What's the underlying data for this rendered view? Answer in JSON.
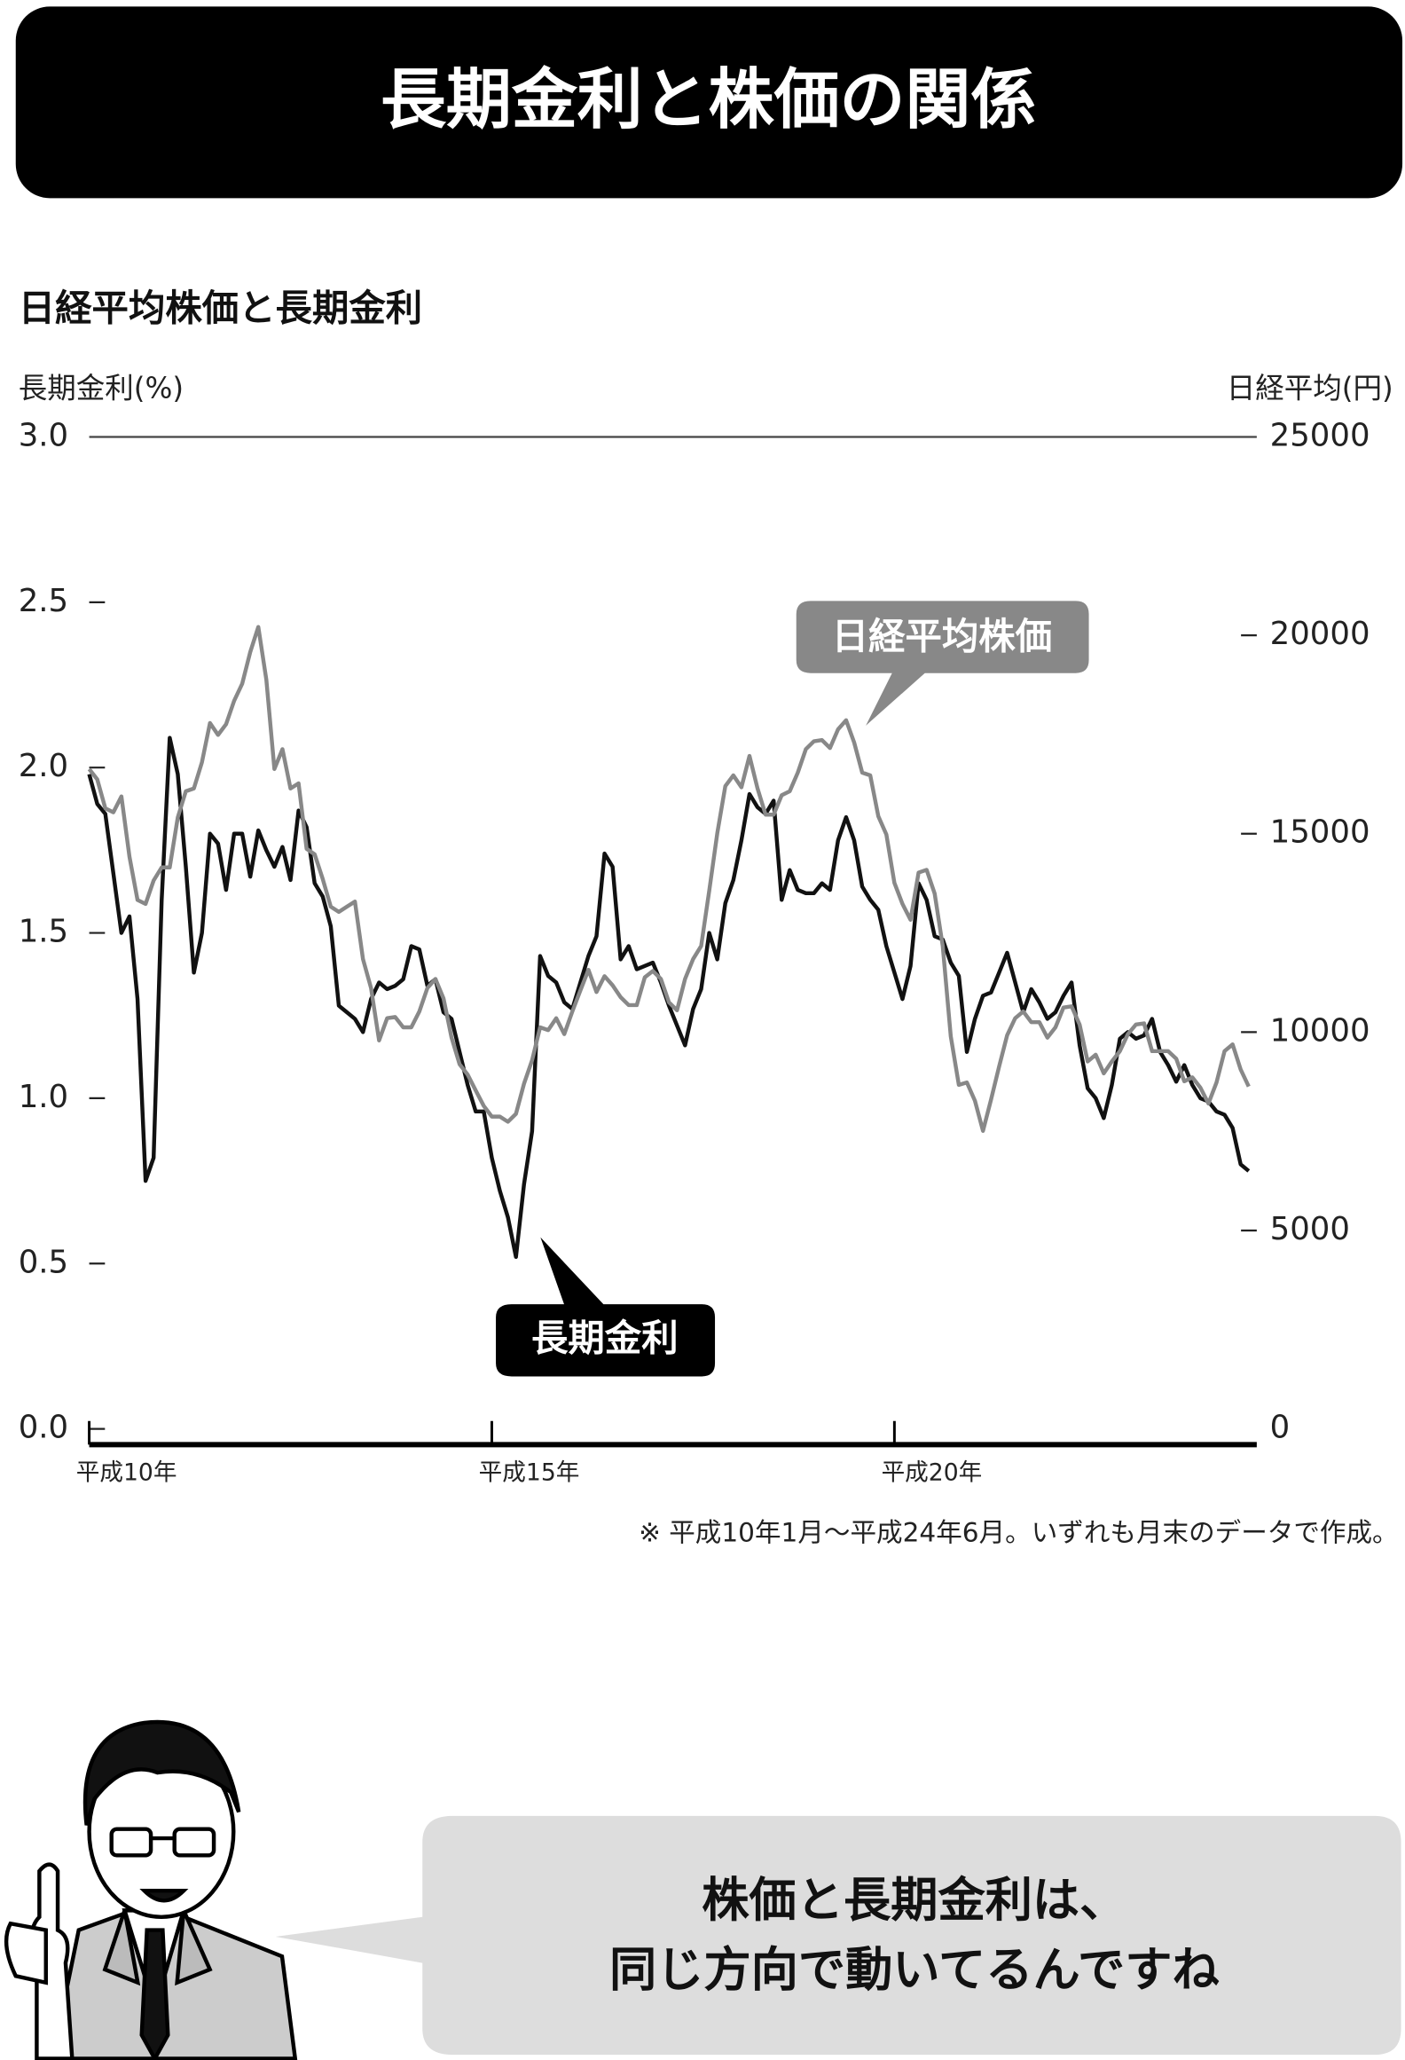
{
  "banner": {
    "title": "長期金利と株価の関係"
  },
  "chart_data": {
    "type": "line",
    "title": "日経平均株価と長期金利",
    "ylabel": "長期金利(%)",
    "y2label": "日経平均(円)",
    "note": "※ 平成10年1月〜平成24年6月。いずれも月末のデータで作成。",
    "x": [
      10,
      10.1,
      10.2,
      10.3,
      10.4,
      10.5,
      10.6,
      10.7,
      10.8,
      10.9,
      11,
      11.1,
      11.2,
      11.3,
      11.4,
      11.5,
      11.6,
      11.7,
      11.8,
      11.9,
      12,
      12.1,
      12.2,
      12.3,
      12.4,
      12.5,
      12.6,
      12.7,
      12.8,
      12.9,
      13,
      13.1,
      13.2,
      13.3,
      13.4,
      13.5,
      13.6,
      13.7,
      13.8,
      13.9,
      14,
      14.1,
      14.2,
      14.3,
      14.4,
      14.5,
      14.6,
      14.7,
      14.8,
      14.9,
      15,
      15.1,
      15.2,
      15.3,
      15.4,
      15.5,
      15.6,
      15.7,
      15.8,
      15.9,
      16,
      16.1,
      16.2,
      16.3,
      16.4,
      16.5,
      16.6,
      16.7,
      16.8,
      16.9,
      17,
      17.1,
      17.2,
      17.3,
      17.4,
      17.5,
      17.6,
      17.7,
      17.8,
      17.9,
      18,
      18.1,
      18.2,
      18.3,
      18.4,
      18.5,
      18.6,
      18.7,
      18.8,
      18.9,
      19,
      19.1,
      19.2,
      19.3,
      19.4,
      19.5,
      19.6,
      19.7,
      19.8,
      19.9,
      20,
      20.1,
      20.2,
      20.3,
      20.4,
      20.5,
      20.6,
      20.7,
      20.8,
      20.9,
      21,
      21.1,
      21.2,
      21.3,
      21.4,
      21.5,
      21.6,
      21.7,
      21.8,
      21.9,
      22,
      22.1,
      22.2,
      22.3,
      22.4,
      22.5,
      22.6,
      22.7,
      22.8,
      22.9,
      23,
      23.1,
      23.2,
      23.3,
      23.4,
      23.5,
      23.6,
      23.7,
      23.8,
      23.9,
      24,
      24.1,
      24.2,
      24.3,
      24.4
    ],
    "series": [
      {
        "name": "長期金利",
        "color": "#111111",
        "axis": "y",
        "values": [
          1.98,
          1.89,
          1.86,
          1.68,
          1.5,
          1.55,
          1.3,
          0.75,
          0.82,
          1.6,
          2.09,
          1.98,
          1.7,
          1.38,
          1.5,
          1.8,
          1.77,
          1.63,
          1.8,
          1.8,
          1.67,
          1.81,
          1.75,
          1.7,
          1.76,
          1.66,
          1.87,
          1.82,
          1.65,
          1.61,
          1.52,
          1.28,
          1.26,
          1.24,
          1.2,
          1.3,
          1.35,
          1.33,
          1.34,
          1.36,
          1.46,
          1.45,
          1.34,
          1.36,
          1.26,
          1.24,
          1.14,
          1.04,
          0.96,
          0.96,
          0.82,
          0.72,
          0.64,
          0.52,
          0.74,
          0.9,
          1.43,
          1.37,
          1.35,
          1.29,
          1.27,
          1.35,
          1.43,
          1.49,
          1.74,
          1.7,
          1.42,
          1.46,
          1.39,
          1.4,
          1.41,
          1.35,
          1.28,
          1.22,
          1.16,
          1.27,
          1.33,
          1.5,
          1.42,
          1.59,
          1.66,
          1.78,
          1.92,
          1.88,
          1.86,
          1.9,
          1.6,
          1.69,
          1.63,
          1.62,
          1.62,
          1.65,
          1.63,
          1.78,
          1.85,
          1.78,
          1.64,
          1.6,
          1.57,
          1.46,
          1.38,
          1.3,
          1.4,
          1.65,
          1.6,
          1.49,
          1.48,
          1.41,
          1.37,
          1.14,
          1.24,
          1.31,
          1.32,
          1.38,
          1.44,
          1.35,
          1.26,
          1.33,
          1.29,
          1.24,
          1.26,
          1.31,
          1.35,
          1.16,
          1.03,
          1.0,
          0.94,
          1.04,
          1.18,
          1.2,
          1.18,
          1.19,
          1.24,
          1.14,
          1.1,
          1.05,
          1.1,
          1.04,
          1.0,
          0.99,
          0.96,
          0.95,
          0.91,
          0.8,
          0.78
        ]
      },
      {
        "name": "日経平均株価",
        "color": "#888888",
        "axis": "y2",
        "values": [
          16630,
          16370,
          15640,
          15540,
          15940,
          14420,
          13330,
          13230,
          13820,
          14150,
          14150,
          15410,
          16070,
          16140,
          16800,
          17790,
          17490,
          17760,
          18350,
          18780,
          19580,
          20210,
          18880,
          16630,
          17130,
          16140,
          16270,
          14620,
          14480,
          13860,
          13160,
          13030,
          13160,
          13290,
          11840,
          11110,
          9790,
          10350,
          10380,
          10120,
          10120,
          10520,
          11110,
          11340,
          10850,
          9860,
          9190,
          8930,
          8530,
          8140,
          7870,
          7870,
          7740,
          7940,
          8700,
          9290,
          10120,
          10050,
          10350,
          9950,
          10520,
          11050,
          11570,
          11010,
          11410,
          11180,
          10880,
          10680,
          10680,
          11380,
          11540,
          11340,
          10750,
          10550,
          11340,
          11840,
          12170,
          13560,
          15010,
          16200,
          16470,
          16170,
          16960,
          16140,
          15480,
          15480,
          15970,
          16070,
          16540,
          17130,
          17330,
          17360,
          17160,
          17630,
          17860,
          17300,
          16540,
          16470,
          15440,
          14980,
          13760,
          13230,
          12830,
          14020,
          14090,
          13490,
          12170,
          9890,
          8670,
          8730,
          8270,
          7510,
          8300,
          9130,
          9920,
          10350,
          10520,
          10250,
          10250,
          9860,
          10120,
          10620,
          10650,
          10190,
          9260,
          9430,
          8960,
          9260,
          9520,
          9950,
          10190,
          10220,
          9520,
          9520,
          9520,
          9330,
          8760,
          8860,
          8600,
          8200,
          8730,
          9520,
          9690,
          9060,
          8630
        ]
      }
    ],
    "xlim": [
      10,
      24.5
    ],
    "xticks": [
      {
        "value": 10,
        "label": "平成10年"
      },
      {
        "value": 15,
        "label": "平成15年"
      },
      {
        "value": 20,
        "label": "平成20年"
      }
    ],
    "ylim": [
      0,
      3
    ],
    "yticks": [
      {
        "value": 0,
        "label": "0.0"
      },
      0.5,
      {
        "value": 1,
        "label": "1.0"
      },
      1.5,
      {
        "value": 2,
        "label": "2.0"
      },
      2.5,
      {
        "value": 3,
        "label": "3.0"
      }
    ],
    "y2lim": [
      0,
      25000
    ],
    "y2ticks": [
      0,
      5000,
      10000,
      15000,
      20000,
      25000
    ]
  },
  "speech": {
    "lines": [
      "株価と長期金利は、",
      "同じ方向で動いてるんですね"
    ]
  }
}
